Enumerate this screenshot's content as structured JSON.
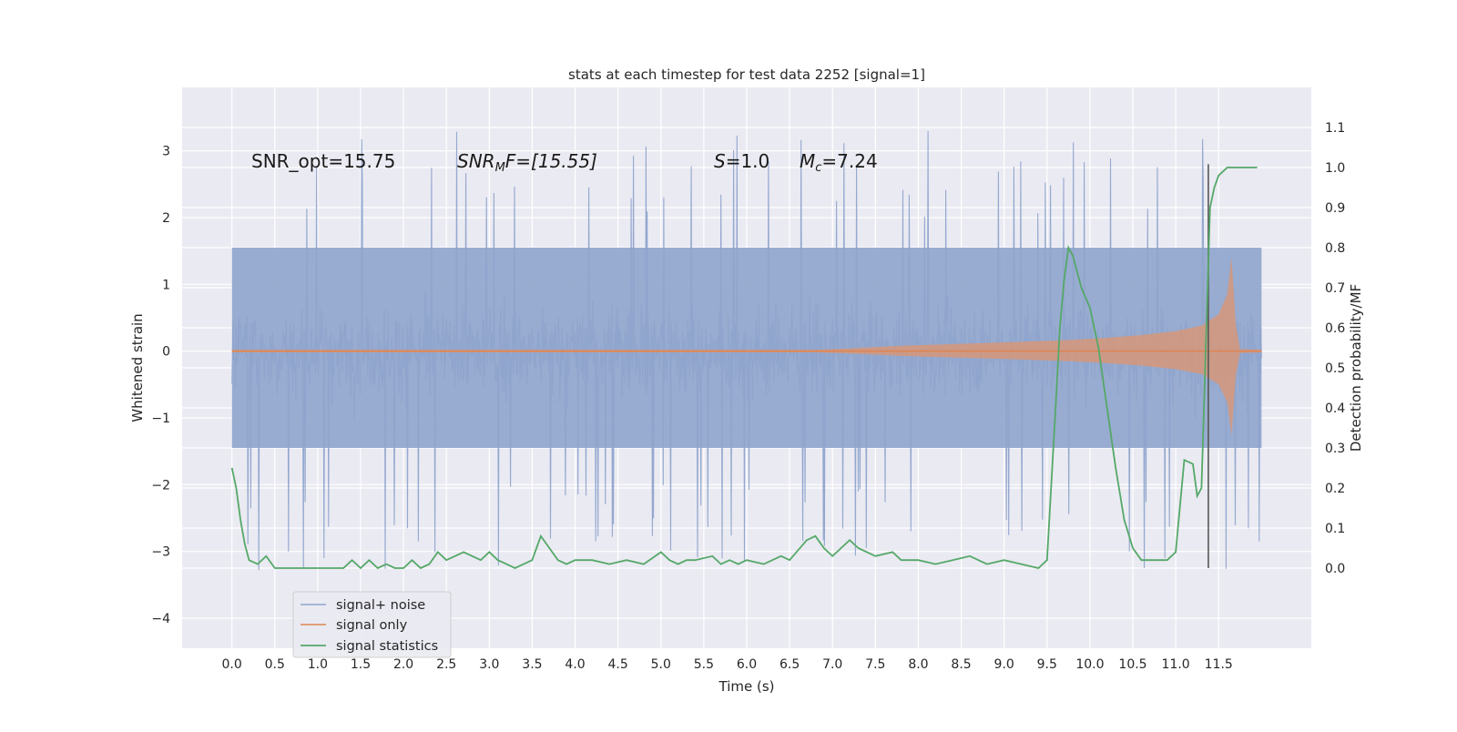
{
  "chart_data": {
    "type": "line",
    "title": "stats at each timestep for test data 2252 [signal=1]",
    "xlabel": "Time (s)",
    "ylabel": "Whitened strain",
    "ylabel_right": "Detection probability/MF",
    "xlim": [
      -0.58,
      12.58
    ],
    "ylim": [
      -4.45,
      3.95
    ],
    "ylim_right": [
      -0.2,
      1.2
    ],
    "xticks": [
      "0.0",
      "0.5",
      "1.0",
      "1.5",
      "2.0",
      "2.5",
      "3.0",
      "3.5",
      "4.0",
      "4.5",
      "5.0",
      "5.5",
      "6.0",
      "6.5",
      "7.0",
      "7.5",
      "8.0",
      "8.5",
      "9.0",
      "9.5",
      "10.0",
      "10.5",
      "11.0",
      "11.5"
    ],
    "yticks": [
      "3",
      "2",
      "1",
      "0",
      "−1",
      "−2",
      "−3",
      "−4"
    ],
    "yticks_right": [
      "1.1",
      "1.0",
      "0.9",
      "0.8",
      "0.7",
      "0.6",
      "0.5",
      "0.4",
      "0.3",
      "0.2",
      "0.1",
      "0.0"
    ],
    "grid": true,
    "legend_position": "lower-left",
    "annotations": {
      "snr_opt": "SNR_opt=15.75",
      "snr_mf_main": "SNR",
      "snr_mf_sub": "M",
      "snr_mf_rest": "F=[15.55]",
      "s_main": "S",
      "s_rest": "=1.0",
      "mc_main": "M",
      "mc_sub": "c",
      "mc_rest": "=7.24"
    },
    "colors": {
      "noise": "#8fa4cc",
      "signal": "#dd8452",
      "stats": "#55a868",
      "background": "#eaeaf2",
      "grid": "#ffffff"
    },
    "series": [
      {
        "name": "signal+ noise",
        "sample_duration": 12.0,
        "envelope": {
          "typical_upper": 1.55,
          "typical_lower": -1.45,
          "max": 3.62,
          "min": -4.08
        }
      },
      {
        "name": "signal only",
        "x": [
          0,
          6.8,
          7.2,
          7.8,
          8.5,
          9.2,
          9.8,
          10.2,
          10.6,
          11.0,
          11.3,
          11.5,
          11.6,
          11.65,
          11.7,
          11.75,
          12.0
        ],
        "y_amp": [
          0.02,
          0.02,
          0.04,
          0.08,
          0.11,
          0.14,
          0.17,
          0.2,
          0.24,
          0.3,
          0.38,
          0.55,
          0.85,
          1.4,
          0.4,
          0.03,
          0.02
        ]
      },
      {
        "name": "signal statistics",
        "x": [
          0.0,
          0.05,
          0.1,
          0.15,
          0.2,
          0.3,
          0.4,
          0.5,
          0.6,
          0.75,
          0.9,
          1.0,
          1.1,
          1.2,
          1.3,
          1.4,
          1.5,
          1.6,
          1.7,
          1.8,
          1.9,
          2.0,
          2.1,
          2.2,
          2.3,
          2.4,
          2.5,
          2.6,
          2.7,
          2.8,
          2.9,
          3.0,
          3.1,
          3.2,
          3.3,
          3.4,
          3.5,
          3.6,
          3.7,
          3.8,
          3.9,
          4.0,
          4.2,
          4.4,
          4.6,
          4.8,
          5.0,
          5.1,
          5.2,
          5.3,
          5.4,
          5.6,
          5.7,
          5.8,
          5.9,
          6.0,
          6.2,
          6.4,
          6.5,
          6.7,
          6.8,
          6.9,
          7.0,
          7.1,
          7.2,
          7.3,
          7.5,
          7.7,
          7.8,
          8.0,
          8.2,
          8.4,
          8.6,
          8.8,
          9.0,
          9.2,
          9.4,
          9.5,
          9.6,
          9.65,
          9.7,
          9.75,
          9.8,
          9.85,
          9.9,
          10.0,
          10.1,
          10.2,
          10.3,
          10.4,
          10.5,
          10.6,
          10.7,
          10.8,
          10.9,
          11.0,
          11.1,
          11.2,
          11.25,
          11.3,
          11.35,
          11.4,
          11.45,
          11.5,
          11.6,
          11.8,
          11.95
        ],
        "y": [
          0.25,
          0.2,
          0.12,
          0.06,
          0.02,
          0.01,
          0.03,
          0.0,
          0.0,
          0.0,
          0.0,
          0.0,
          0.0,
          0.0,
          0.0,
          0.02,
          0.0,
          0.02,
          0.0,
          0.01,
          0.0,
          0.0,
          0.02,
          0.0,
          0.01,
          0.04,
          0.02,
          0.03,
          0.04,
          0.03,
          0.02,
          0.04,
          0.02,
          0.01,
          0.0,
          0.01,
          0.02,
          0.08,
          0.05,
          0.02,
          0.01,
          0.02,
          0.02,
          0.01,
          0.02,
          0.01,
          0.04,
          0.02,
          0.01,
          0.02,
          0.02,
          0.03,
          0.01,
          0.02,
          0.01,
          0.02,
          0.01,
          0.03,
          0.02,
          0.07,
          0.08,
          0.05,
          0.03,
          0.05,
          0.07,
          0.05,
          0.03,
          0.04,
          0.02,
          0.02,
          0.01,
          0.02,
          0.03,
          0.01,
          0.02,
          0.01,
          0.0,
          0.02,
          0.4,
          0.6,
          0.72,
          0.8,
          0.78,
          0.74,
          0.7,
          0.65,
          0.55,
          0.4,
          0.25,
          0.12,
          0.05,
          0.02,
          0.02,
          0.02,
          0.02,
          0.04,
          0.27,
          0.26,
          0.18,
          0.2,
          0.55,
          0.9,
          0.95,
          0.98,
          1.0,
          1.0,
          1.0
        ]
      }
    ],
    "marker_line_x": 11.38
  }
}
